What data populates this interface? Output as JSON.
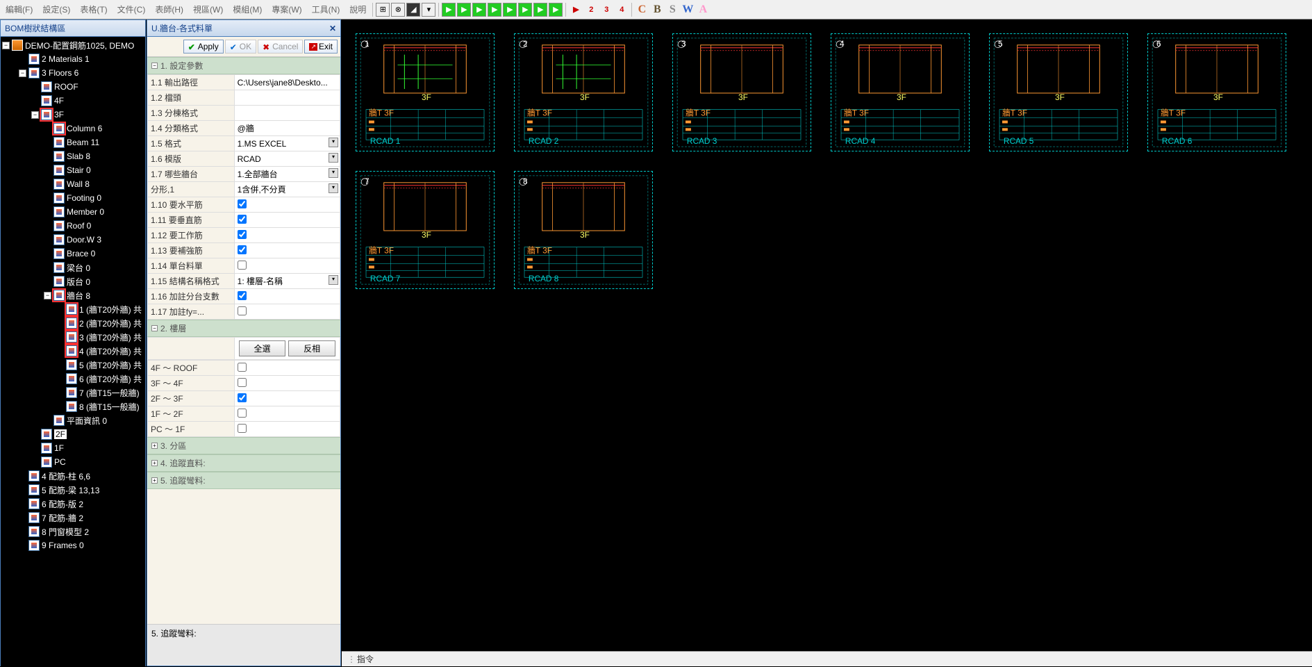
{
  "toolbar": {
    "menus": [
      "編輯(F)",
      "設定(S)",
      "表格(T)",
      "文件(C)",
      "表師(H)",
      "視區(W)",
      "模組(M)",
      "專案(W)",
      "工具(N)",
      "說明"
    ],
    "nums": [
      "2",
      "3",
      "4"
    ],
    "letters": [
      "C",
      "B",
      "S",
      "W",
      "A"
    ]
  },
  "tree": {
    "title": "BOM樹狀結構區",
    "root": "DEMO-配置鋼筋1025, DEMO",
    "items": [
      {
        "lvl": 1,
        "exp": "",
        "label": "2 Materials 1"
      },
      {
        "lvl": 1,
        "exp": "-",
        "label": "3 Floors 6"
      },
      {
        "lvl": 2,
        "exp": "",
        "label": "ROOF"
      },
      {
        "lvl": 2,
        "exp": "",
        "label": "4F"
      },
      {
        "lvl": 2,
        "exp": "-",
        "label": "3F",
        "sel": true
      },
      {
        "lvl": 3,
        "exp": "",
        "label": "Column 6",
        "sel": true
      },
      {
        "lvl": 3,
        "exp": "",
        "label": "Beam 11"
      },
      {
        "lvl": 3,
        "exp": "",
        "label": "Slab 8"
      },
      {
        "lvl": 3,
        "exp": "",
        "label": "Stair 0"
      },
      {
        "lvl": 3,
        "exp": "",
        "label": "Wall 8"
      },
      {
        "lvl": 3,
        "exp": "",
        "label": "Footing 0"
      },
      {
        "lvl": 3,
        "exp": "",
        "label": "Member 0"
      },
      {
        "lvl": 3,
        "exp": "",
        "label": "Roof 0"
      },
      {
        "lvl": 3,
        "exp": "",
        "label": "Door.W 3"
      },
      {
        "lvl": 3,
        "exp": "",
        "label": "Brace 0"
      },
      {
        "lvl": 3,
        "exp": "",
        "label": "梁台 0"
      },
      {
        "lvl": 3,
        "exp": "",
        "label": "版台 0"
      },
      {
        "lvl": 3,
        "exp": "-",
        "label": "牆台 8",
        "sel": true
      },
      {
        "lvl": 4,
        "exp": "",
        "label": "1 (牆T20外牆) 共",
        "sel": true
      },
      {
        "lvl": 4,
        "exp": "",
        "label": "2 (牆T20外牆) 共",
        "sel": true
      },
      {
        "lvl": 4,
        "exp": "",
        "label": "3 (牆T20外牆) 共",
        "sel": true
      },
      {
        "lvl": 4,
        "exp": "",
        "label": "4 (牆T20外牆) 共",
        "sel": true
      },
      {
        "lvl": 4,
        "exp": "",
        "label": "5 (牆T20外牆) 共"
      },
      {
        "lvl": 4,
        "exp": "",
        "label": "6 (牆T20外牆) 共"
      },
      {
        "lvl": 4,
        "exp": "",
        "label": "7 (牆T15一般牆)"
      },
      {
        "lvl": 4,
        "exp": "",
        "label": "8 (牆T15一般牆)"
      },
      {
        "lvl": 3,
        "exp": "",
        "label": "平面資訊 0"
      },
      {
        "lvl": 2,
        "exp": "",
        "label": "2F",
        "hl": true
      },
      {
        "lvl": 2,
        "exp": "",
        "label": "1F"
      },
      {
        "lvl": 2,
        "exp": "",
        "label": "PC"
      },
      {
        "lvl": 1,
        "exp": "",
        "label": "4 配筋-柱 6,6"
      },
      {
        "lvl": 1,
        "exp": "",
        "label": "5 配筋-梁 13,13"
      },
      {
        "lvl": 1,
        "exp": "",
        "label": "6 配筋-版 2"
      },
      {
        "lvl": 1,
        "exp": "",
        "label": "7 配筋-牆 2"
      },
      {
        "lvl": 1,
        "exp": "",
        "label": "8 門窗模型 2"
      },
      {
        "lvl": 1,
        "exp": "",
        "label": "9 Frames 0"
      }
    ]
  },
  "prop": {
    "title": "U.牆台-各式料單",
    "btn_apply": "Apply",
    "btn_ok": "OK",
    "btn_cancel": "Cancel",
    "btn_exit": "Exit",
    "sec1": "1. 設定參數",
    "rows1": [
      {
        "k": "1.1 輸出路徑",
        "v": "C:\\Users\\jane8\\Deskto...",
        "dd": false
      },
      {
        "k": "1.2 檔頭",
        "v": "",
        "dd": false
      },
      {
        "k": "1.3 分棟格式",
        "v": "",
        "dd": false
      },
      {
        "k": "1.4 分類格式",
        "v": "@牆",
        "dd": false
      },
      {
        "k": "1.5 格式",
        "v": "1.MS EXCEL",
        "dd": true
      },
      {
        "k": "1.6 模版",
        "v": "RCAD",
        "dd": true
      },
      {
        "k": "1.7 哪些牆台",
        "v": "1.全部牆台",
        "dd": true
      },
      {
        "k": "分形,1",
        "v": "1含併,不分頁",
        "dd": true
      },
      {
        "k": "1.10 要水平筋",
        "v": "",
        "chk": true,
        "checked": true
      },
      {
        "k": "1.11 要垂直筋",
        "v": "",
        "chk": true,
        "checked": true
      },
      {
        "k": "1.12 要工作筋",
        "v": "",
        "chk": true,
        "checked": true
      },
      {
        "k": "1.13 要補強筋",
        "v": "",
        "chk": true,
        "checked": true
      },
      {
        "k": "1.14 單台料單",
        "v": "",
        "chk": true,
        "checked": false
      },
      {
        "k": "1.15 結構名稱格式",
        "v": "1: 樓層-名稱",
        "dd": true
      },
      {
        "k": "1.16 加註分台支數",
        "v": "",
        "chk": true,
        "checked": true
      },
      {
        "k": "1.17 加註fy=...",
        "v": "",
        "chk": true,
        "checked": false
      }
    ],
    "sec2": "2. 樓層",
    "btn_all": "全選",
    "btn_inv": "反相",
    "floors": [
      {
        "k": "4F ～ ROOF",
        "checked": false
      },
      {
        "k": "3F ～ 4F",
        "checked": false
      },
      {
        "k": "2F ～ 3F",
        "checked": true
      },
      {
        "k": "1F ～ 2F",
        "checked": false
      },
      {
        "k": "PC ～ 1F",
        "checked": false
      }
    ],
    "sec3": "3. 分區",
    "sec4": "4. 追蹤直料:",
    "sec5": "5. 追蹤彎料:",
    "footer": "5. 追蹤彎料:"
  },
  "status": {
    "label": "指令"
  },
  "colors": {
    "cyan": "#00cccc",
    "orange": "#ff9933",
    "red": "#ff3333",
    "white": "#ffffff",
    "green": "#33ff33",
    "yellow": "#ffff66",
    "magenta": "#ff66ff"
  },
  "drawings": {
    "count": 8
  }
}
